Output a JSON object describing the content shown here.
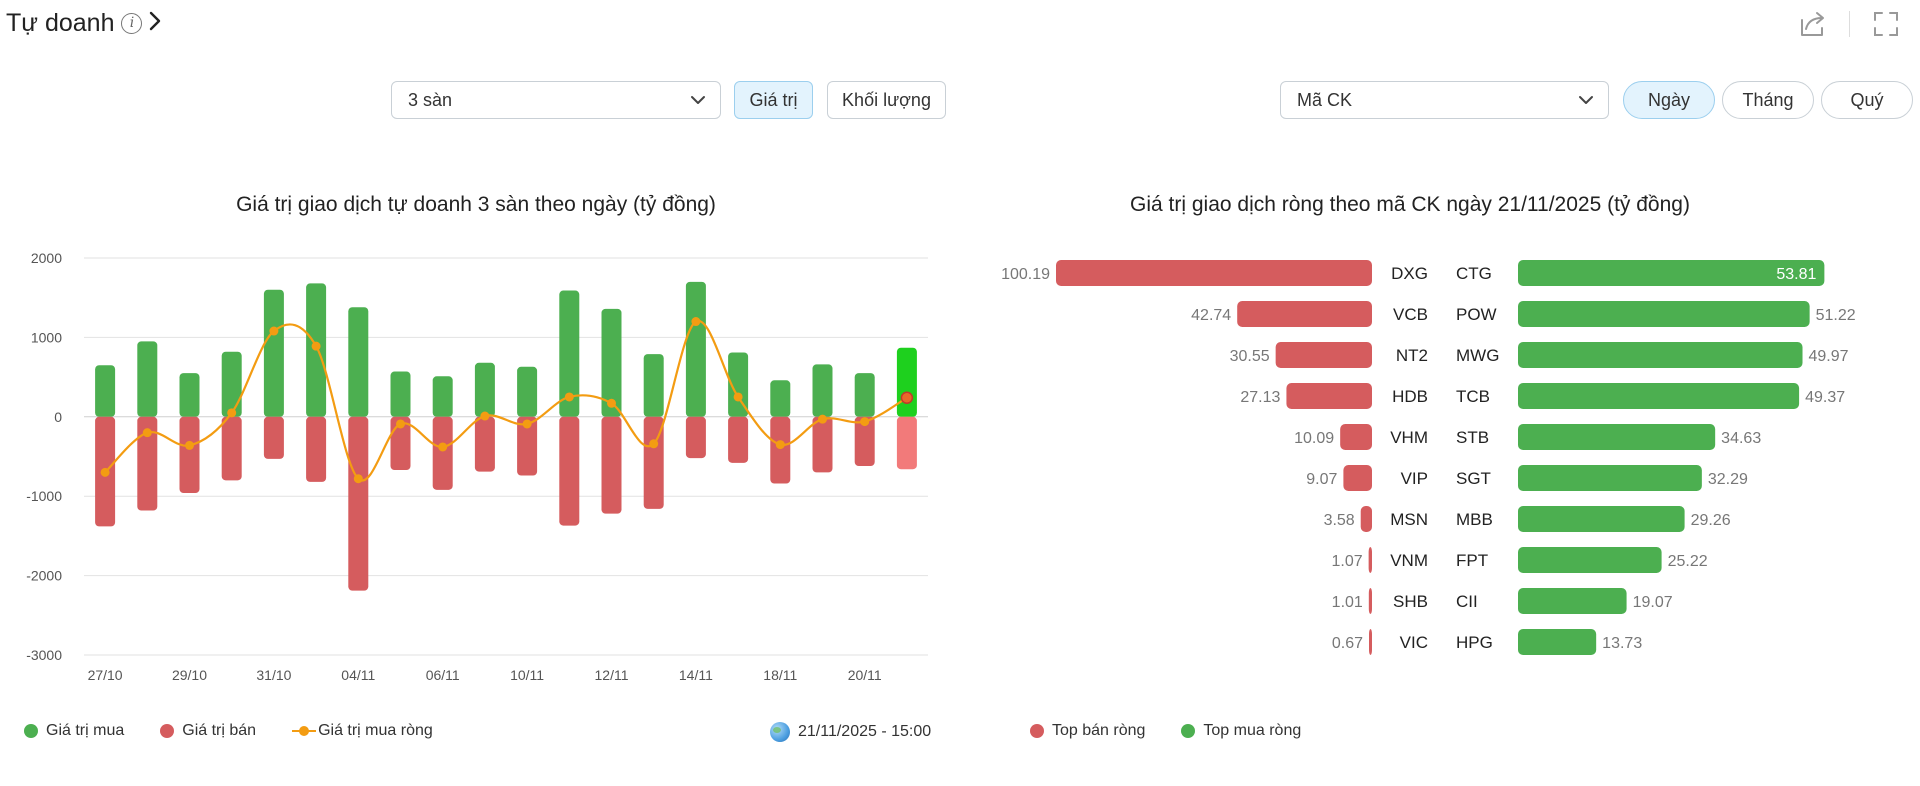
{
  "header": {
    "title": "Tự doanh",
    "info_icon": "info-circle-icon",
    "chevron_icon": "chevron-right-icon"
  },
  "top_icons": {
    "share": "share-icon",
    "fullscreen": "fullscreen-icon"
  },
  "left_controls": {
    "exchange_select": {
      "value": "3 sàn"
    },
    "value_button": "Giá trị",
    "volume_button": "Khối lượng",
    "active": "Giá trị"
  },
  "right_controls": {
    "ticker_select": {
      "value": "Mã CK"
    },
    "day_button": "Ngày",
    "month_button": "Tháng",
    "quarter_button": "Quý",
    "active": "Ngày"
  },
  "colors": {
    "buy": "#4caf50",
    "sell": "#d55c5e",
    "net_line": "#f39c12",
    "buy_highlight": "#1ed01e",
    "sell_highlight": "#f27a7a"
  },
  "chart_data": [
    {
      "type": "bar",
      "title": "Giá trị giao dịch tự doanh 3 sàn theo ngày (tỷ đồng)",
      "ylim": [
        -3000,
        2000
      ],
      "yticks": [
        "2000",
        "1000",
        "0",
        "-1000",
        "-2000",
        "-3000"
      ],
      "grid": true,
      "categories": [
        "27/10",
        "28/10",
        "29/10",
        "30/10",
        "31/10",
        "03/11",
        "04/11",
        "05/11",
        "06/11",
        "07/11",
        "10/11",
        "11/11",
        "12/11",
        "13/11",
        "14/11",
        "17/11",
        "18/11",
        "19/11",
        "20/11",
        "21/11"
      ],
      "x_tick_labels": [
        "27/10",
        "29/10",
        "31/10",
        "04/11",
        "06/11",
        "10/11",
        "12/11",
        "14/11",
        "18/11",
        "20/11"
      ],
      "series": [
        {
          "name": "Giá trị mua",
          "values": [
            650,
            950,
            550,
            820,
            1600,
            1680,
            1380,
            570,
            510,
            680,
            630,
            1590,
            1360,
            790,
            1700,
            810,
            460,
            660,
            550,
            870
          ]
        },
        {
          "name": "Giá trị bán",
          "values": [
            -1380,
            -1180,
            -960,
            -800,
            -530,
            -820,
            -2190,
            -670,
            -920,
            -690,
            -740,
            -1370,
            -1220,
            -1160,
            -520,
            -580,
            -840,
            -700,
            -620,
            -660
          ]
        },
        {
          "name": "Giá trị mua ròng",
          "values": [
            -700,
            -200,
            -360,
            50,
            1080,
            890,
            -780,
            -90,
            -380,
            10,
            -90,
            250,
            170,
            -340,
            1200,
            250,
            -350,
            -30,
            -60,
            240
          ]
        }
      ],
      "legend": {
        "placement": "bottom-left",
        "items": [
          "Giá trị mua",
          "Giá trị bán",
          "Giá trị mua ròng"
        ]
      },
      "timestamp": "21/11/2025 - 15:00"
    },
    {
      "type": "bar",
      "title": "Giá trị giao dịch ròng theo mã CK ngày 21/11/2025 (tỷ đồng)",
      "sell_scale_max": 100.19,
      "buy_scale_max": 55.5,
      "sell_rows": [
        {
          "ticker": "DXG",
          "value": 100.19
        },
        {
          "ticker": "VCB",
          "value": 42.74
        },
        {
          "ticker": "NT2",
          "value": 30.55
        },
        {
          "ticker": "HDB",
          "value": 27.13
        },
        {
          "ticker": "VHM",
          "value": 10.09
        },
        {
          "ticker": "VIP",
          "value": 9.07
        },
        {
          "ticker": "MSN",
          "value": 3.58
        },
        {
          "ticker": "VNM",
          "value": 1.07
        },
        {
          "ticker": "SHB",
          "value": 1.01
        },
        {
          "ticker": "VIC",
          "value": 0.67
        }
      ],
      "buy_rows": [
        {
          "ticker": "CTG",
          "value": 53.81
        },
        {
          "ticker": "POW",
          "value": 51.22
        },
        {
          "ticker": "MWG",
          "value": 49.97
        },
        {
          "ticker": "TCB",
          "value": 49.37
        },
        {
          "ticker": "STB",
          "value": 34.63
        },
        {
          "ticker": "SGT",
          "value": 32.29
        },
        {
          "ticker": "MBB",
          "value": 29.26
        },
        {
          "ticker": "FPT",
          "value": 25.22
        },
        {
          "ticker": "CII",
          "value": 19.07
        },
        {
          "ticker": "HPG",
          "value": 13.73
        }
      ],
      "legend": {
        "placement": "bottom-left",
        "items": [
          "Top bán ròng",
          "Top mua ròng"
        ]
      }
    }
  ]
}
